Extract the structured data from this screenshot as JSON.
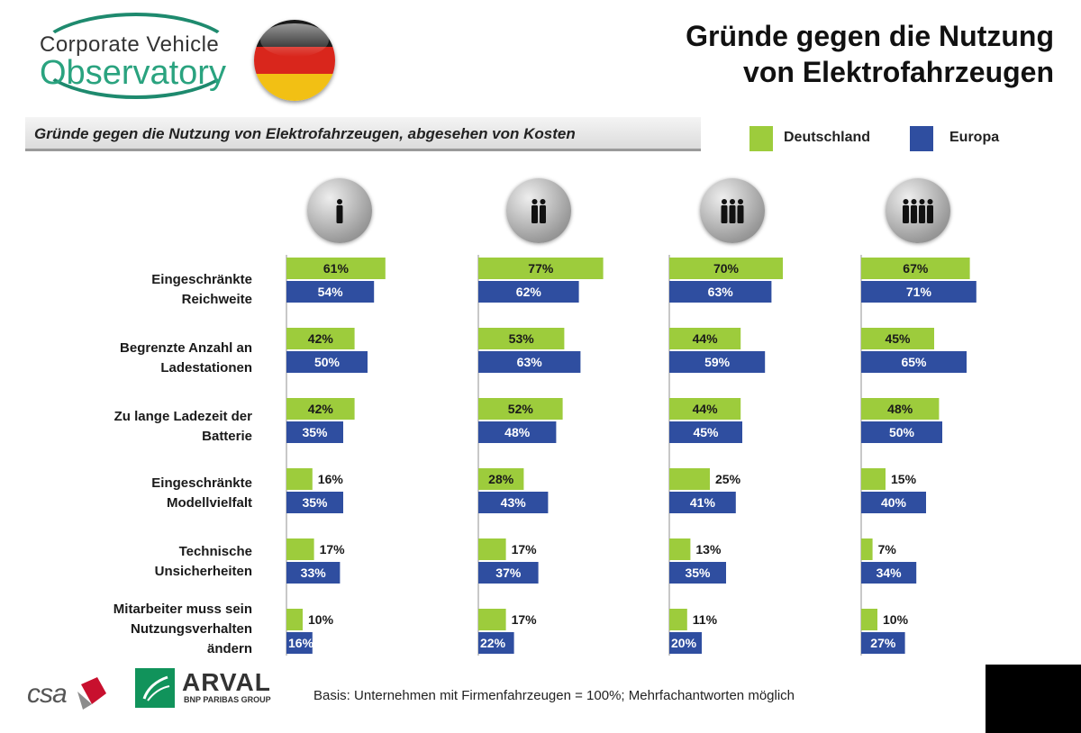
{
  "logo": {
    "line1": "Corporate Vehicle",
    "line2": "Observatory"
  },
  "flag_colors": [
    "#1a1a1a",
    "#d9261c",
    "#f2c014"
  ],
  "title": {
    "line1": "Gründe gegen die Nutzung",
    "line2": "von Elektrofahrzeugen"
  },
  "footer": {
    "csa": "csa",
    "arval_name": "ARVAL",
    "arval_group": "BNP PARIBAS GROUP",
    "basis": "Basis: Unternehmen mit Firmenfahrzeugen = 100%; Mehrfachantworten möglich"
  },
  "chart_data": {
    "type": "bar",
    "orientation": "horizontal",
    "title": "Gründe gegen die Nutzung von Elektrofahrzeugen, abgesehen von Kosten",
    "legend": [
      {
        "name": "Deutschland",
        "color": "#9dcc3c"
      },
      {
        "name": "Europa",
        "color": "#2f4ea0"
      }
    ],
    "categories": [
      [
        "Eingeschränkte",
        "Reichweite"
      ],
      [
        "Begrenzte Anzahl an",
        "Ladestationen"
      ],
      [
        "Zu lange Ladezeit der",
        "Batterie"
      ],
      [
        "Eingeschränkte",
        "Modellvielfalt"
      ],
      [
        "Technische",
        "Unsicherheiten"
      ],
      [
        "Mitarbeiter muss sein",
        "Nutzungsverhalten",
        "ändern"
      ]
    ],
    "panels": [
      {
        "icon": "one-person-icon",
        "people": 1,
        "deutschland": [
          61,
          42,
          42,
          16,
          17,
          10
        ],
        "europa": [
          54,
          50,
          35,
          35,
          33,
          16
        ]
      },
      {
        "icon": "two-persons-icon",
        "people": 2,
        "deutschland": [
          77,
          53,
          52,
          28,
          17,
          17
        ],
        "europa": [
          62,
          63,
          48,
          43,
          37,
          22
        ]
      },
      {
        "icon": "three-persons-icon",
        "people": 3,
        "deutschland": [
          70,
          44,
          44,
          25,
          13,
          11
        ],
        "europa": [
          63,
          59,
          45,
          41,
          35,
          20
        ]
      },
      {
        "icon": "four-persons-icon",
        "people": 4,
        "deutschland": [
          67,
          45,
          48,
          15,
          7,
          10
        ],
        "europa": [
          71,
          65,
          50,
          40,
          34,
          27
        ]
      }
    ],
    "unit": "%",
    "xlim": [
      0,
      80
    ]
  }
}
